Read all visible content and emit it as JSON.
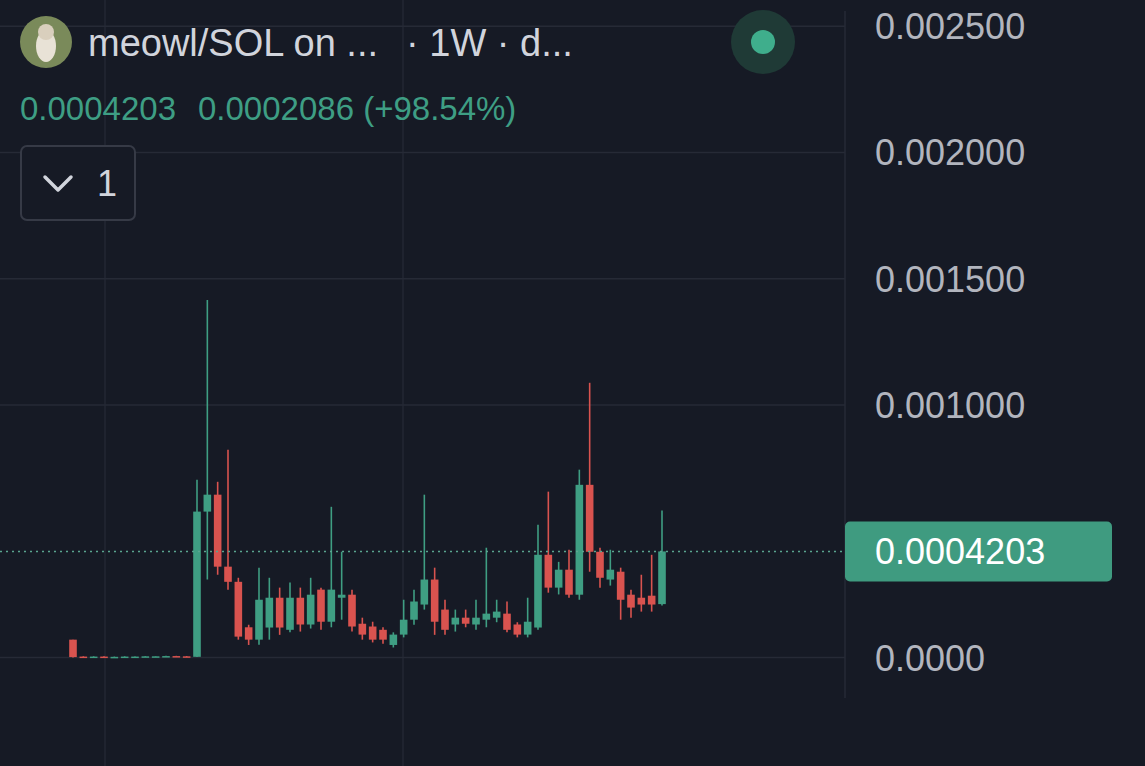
{
  "chart_data": {
    "type": "candlestick",
    "title": "meowl/SOL on ...",
    "subtitle": "· 1W · d...",
    "annotations": [
      "0.0004203",
      "0.0002086 (+98.54%)",
      "1"
    ],
    "categories": [
      null,
      null,
      null,
      null,
      null,
      null,
      null,
      null,
      null,
      null,
      null,
      null,
      null,
      null,
      null,
      null,
      null,
      null,
      null,
      null,
      null,
      null,
      null,
      null,
      null,
      null,
      null,
      null,
      null,
      null,
      null,
      null,
      null,
      null,
      null,
      null,
      null,
      null,
      null,
      null,
      null,
      null,
      null,
      null,
      null,
      null,
      null,
      null,
      null,
      null,
      null,
      null,
      null,
      null,
      null,
      null,
      null,
      null
    ],
    "open": [
      7.1e-05,
      4e-06,
      3e-06,
      4e-06,
      3e-06,
      3e-06,
      4e-06,
      4e-06,
      5e-06,
      5e-06,
      6e-06,
      5e-06,
      3e-06,
      0.000578,
      0.000645,
      0.00036,
      0.0003,
      0.00012,
      7.1e-05,
      0.000119,
      0.000237,
      0.00011,
      0.000237,
      0.000131,
      0.000269,
      0.000142,
      0.000237,
      0.000249,
      0.000134,
      0.000123,
      0.00011,
      5e-05,
      9.1e-05,
      0.00015,
      0.00021,
      0.000309,
      0.00019,
      0.000131,
      0.000158,
      0.000131,
      0.00015,
      0.000158,
      0.000174,
      0.000131,
      9.1e-05,
      0.000119,
      0.000407,
      0.000277,
      0.000348,
      0.000249,
      0.000684,
      0.000419,
      0.000309,
      0.00034,
      0.000249,
      0.000237,
      0.000245,
      0.0002117
    ],
    "high": [
      7.1e-05,
      5e-06,
      5e-06,
      5e-06,
      4e-06,
      5e-06,
      5e-06,
      6e-06,
      6e-06,
      7e-06,
      7e-06,
      6e-06,
      0.000704,
      0.001416,
      0.000696,
      0.000823,
      0.000316,
      0.00013,
      0.000356,
      0.000316,
      0.000277,
      0.000297,
      0.000277,
      0.000316,
      0.000277,
      0.000597,
      0.000419,
      0.000269,
      0.000158,
      0.000142,
      0.00012,
      0.0001,
      0.000229,
      0.000269,
      0.000645,
      0.000356,
      0.000229,
      0.00019,
      0.00019,
      0.000229,
      0.000435,
      0.000229,
      0.000222,
      0.00014,
      0.000237,
      0.000526,
      0.000657,
      0.000379,
      0.000427,
      0.000744,
      0.001088,
      0.000435,
      0.000427,
      0.000356,
      0.000269,
      0.000328,
      0.000407,
      0.000582
    ],
    "low": [
      0,
      1e-06,
      2e-06,
      2e-06,
      2e-06,
      2e-06,
      3e-06,
      3e-06,
      4e-06,
      4e-06,
      4e-06,
      2e-06,
      2e-06,
      0.000309,
      0.000328,
      0.000269,
      7.1e-05,
      5e-05,
      5.1e-05,
      7.1e-05,
      9e-05,
      0.0001,
      0.000103,
      0.000115,
      0.00011,
      0.00012,
      0.00015,
      0.000103,
      7.1e-05,
      6e-05,
      5.5e-05,
      4e-05,
      8e-05,
      0.00013,
      0.00019,
      9e-05,
      9e-05,
      0.000103,
      0.00012,
      0.00011,
      0.00012,
      0.00014,
      0.0001,
      8e-05,
      8e-05,
      0.00011,
      0.000257,
      0.00025,
      0.000237,
      0.000229,
      0.00034,
      0.000277,
      0.000285,
      0.00015,
      0.000158,
      0.000182,
      0.000182,
      0.000206
    ],
    "close": [
      2e-06,
      2e-06,
      4e-06,
      3e-06,
      3e-06,
      4e-06,
      4e-06,
      5e-06,
      5e-06,
      6e-06,
      5e-06,
      3e-06,
      0.000578,
      0.000645,
      0.00036,
      0.0003,
      8.3e-05,
      7.1e-05,
      0.000229,
      0.000237,
      0.000119,
      0.000237,
      0.000131,
      0.000249,
      0.000142,
      0.000269,
      0.000249,
      0.000123,
      9.1e-05,
      7.1e-05,
      7.1e-05,
      9.1e-05,
      0.00015,
      0.000222,
      0.000309,
      0.000142,
      0.00011,
      0.000158,
      0.000134,
      0.000158,
      0.000174,
      0.000182,
      0.00011,
      9.1e-05,
      0.000142,
      0.000407,
      0.000277,
      0.000348,
      0.000249,
      0.000684,
      0.000419,
      0.000316,
      0.000348,
      0.000229,
      0.000198,
      0.00021,
      0.00021,
      0.0004203
    ],
    "ylim": [
      -0.00016,
      0.00256
    ],
    "yticks": [
      {
        "value": 0,
        "label": "0.0000"
      },
      {
        "value": 0.001,
        "label": "0.001000"
      },
      {
        "value": 0.0015,
        "label": "0.001500"
      },
      {
        "value": 0.002,
        "label": "0.002000"
      },
      {
        "value": 0.0025,
        "label": "0.002500"
      }
    ],
    "grid": true,
    "tick_labels": "y"
  }
}
